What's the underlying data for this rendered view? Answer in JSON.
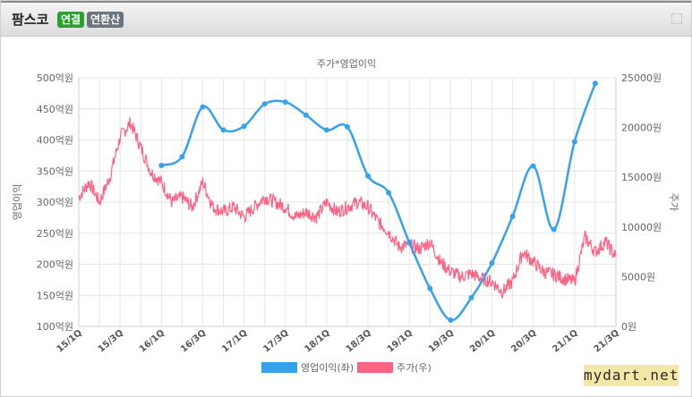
{
  "header": {
    "company": "팜스코",
    "badge_consolidated": "연결",
    "badge_annualized": "연환산",
    "expand_icon": "expand-icon"
  },
  "watermark": "mydart.net",
  "colors": {
    "profit": "#36a2eb",
    "price": "#ff6384",
    "grid": "#e6e6e6",
    "consolidated_badge": "#2ca02c",
    "annualized_badge": "#6c757d"
  },
  "chart_data": {
    "type": "line",
    "title": "주가*영업이익",
    "x_tick_labels": [
      "15/1Q",
      "15/3Q",
      "16/1Q",
      "16/3Q",
      "17/1Q",
      "17/3Q",
      "18/1Q",
      "18/3Q",
      "19/1Q",
      "19/3Q",
      "20/1Q",
      "20/3Q",
      "21/1Q",
      "21/3Q"
    ],
    "y_left": {
      "label": "영업이익",
      "range": [
        100,
        500
      ],
      "step": 50,
      "tick_labels": [
        "100억원",
        "150억원",
        "200억원",
        "250억원",
        "300억원",
        "350억원",
        "400억원",
        "450억원",
        "500억원"
      ]
    },
    "y_right": {
      "label": "주가",
      "range": [
        0,
        25000
      ],
      "step": 5000,
      "tick_labels": [
        "0원",
        "5000원",
        "10000원",
        "15000원",
        "20000원",
        "25000원"
      ]
    },
    "legend_position": "bottom",
    "grid": true,
    "series": [
      {
        "name": "영업이익(좌)",
        "axis": "left",
        "quarters": [
          "16/1Q",
          "16/2Q",
          "16/3Q",
          "16/4Q",
          "17/1Q",
          "17/2Q",
          "17/3Q",
          "17/4Q",
          "18/1Q",
          "18/2Q",
          "18/3Q",
          "18/4Q",
          "19/1Q",
          "19/2Q",
          "19/3Q",
          "19/4Q",
          "20/1Q",
          "20/2Q",
          "20/3Q",
          "20/4Q",
          "21/1Q",
          "21/2Q"
        ],
        "values": [
          359,
          373,
          453,
          416,
          422,
          458,
          461,
          440,
          416,
          421,
          342,
          315,
          235,
          161,
          110,
          146,
          202,
          277,
          358,
          256,
          397,
          491
        ]
      },
      {
        "name": "주가(우)",
        "axis": "right",
        "points": [
          [
            "15/1Q",
            13000
          ],
          [
            "15/1Q+",
            14500
          ],
          [
            "15/2Q",
            12500
          ],
          [
            "15/2Q+",
            15000
          ],
          [
            "15/3Q",
            19000
          ],
          [
            "15/3Q+",
            20500
          ],
          [
            "15/4Q",
            18000
          ],
          [
            "15/4Q+",
            15500
          ],
          [
            "16/1Q",
            14500
          ],
          [
            "16/1Q+",
            12500
          ],
          [
            "16/2Q",
            13000
          ],
          [
            "16/2Q+",
            12000
          ],
          [
            "16/3Q",
            14500
          ],
          [
            "16/3Q+",
            12000
          ],
          [
            "16/4Q",
            11500
          ],
          [
            "16/4Q+",
            12000
          ],
          [
            "17/1Q",
            11000
          ],
          [
            "17/1Q+",
            12000
          ],
          [
            "17/2Q",
            13000
          ],
          [
            "17/2Q+",
            12500
          ],
          [
            "17/3Q",
            12000
          ],
          [
            "17/3Q+",
            11000
          ],
          [
            "17/4Q",
            11500
          ],
          [
            "17/4Q+",
            11000
          ],
          [
            "18/1Q",
            12500
          ],
          [
            "18/1Q+",
            11500
          ],
          [
            "18/2Q",
            12000
          ],
          [
            "18/2Q+",
            12500
          ],
          [
            "18/3Q",
            12000
          ],
          [
            "18/3Q+",
            10500
          ],
          [
            "18/4Q",
            9500
          ],
          [
            "18/4Q+",
            8000
          ],
          [
            "19/1Q",
            8200
          ],
          [
            "19/1Q+",
            7800
          ],
          [
            "19/2Q",
            8500
          ],
          [
            "19/2Q+",
            6500
          ],
          [
            "19/3Q",
            5500
          ],
          [
            "19/3Q+",
            5000
          ],
          [
            "19/4Q",
            5300
          ],
          [
            "19/4Q+",
            4800
          ],
          [
            "20/1Q",
            4500
          ],
          [
            "20/1Q+",
            3500
          ],
          [
            "20/2Q",
            4500
          ],
          [
            "20/2Q+",
            7500
          ],
          [
            "20/3Q",
            6500
          ],
          [
            "20/3Q+",
            5500
          ],
          [
            "20/4Q",
            5200
          ],
          [
            "20/4Q+",
            4800
          ],
          [
            "21/1Q",
            4500
          ],
          [
            "21/1Q+",
            9000
          ],
          [
            "21/2Q",
            7500
          ],
          [
            "21/2Q+",
            8500
          ],
          [
            "21/3Q",
            7000
          ]
        ]
      }
    ]
  }
}
